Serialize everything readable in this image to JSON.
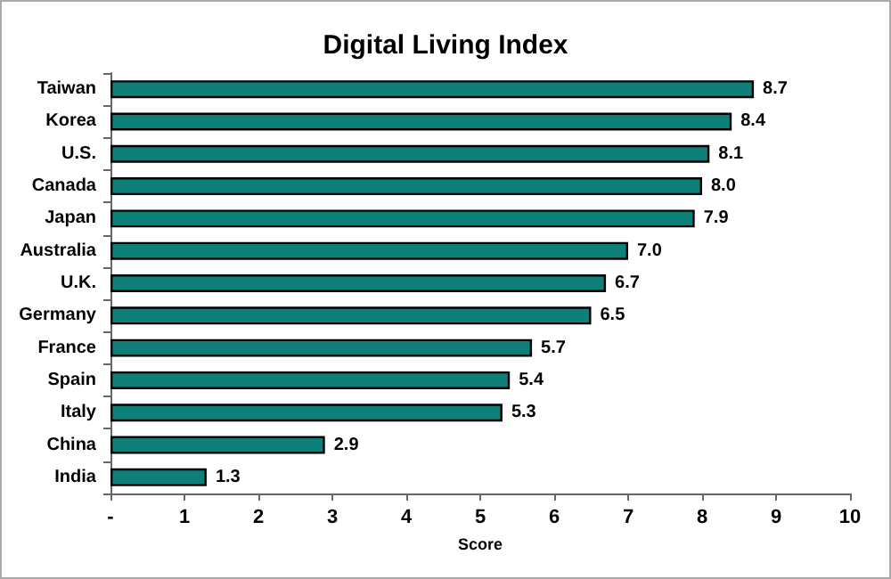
{
  "chart_data": {
    "type": "bar",
    "title": "Digital Living Index",
    "xlabel": "Score",
    "orientation": "horizontal",
    "categories": [
      "Taiwan",
      "Korea",
      "U.S.",
      "Canada",
      "Japan",
      "Australia",
      "U.K.",
      "Germany",
      "France",
      "Spain",
      "Italy",
      "China",
      "India"
    ],
    "values": [
      8.7,
      8.4,
      8.1,
      8.0,
      7.9,
      7.0,
      6.7,
      6.5,
      5.7,
      5.4,
      5.3,
      2.9,
      1.3
    ],
    "value_labels": [
      "8.7",
      "8.4",
      "8.1",
      "8.0",
      "7.9",
      "7.0",
      "6.7",
      "6.5",
      "5.7",
      "5.4",
      "5.3",
      "2.9",
      "1.3"
    ],
    "color": "#0f7f7a",
    "xlim": [
      0,
      10
    ],
    "xticks": [
      {
        "value": 0,
        "label": "-"
      },
      1,
      2,
      3,
      4,
      5,
      6,
      7,
      8,
      9,
      10
    ],
    "grid": false
  }
}
